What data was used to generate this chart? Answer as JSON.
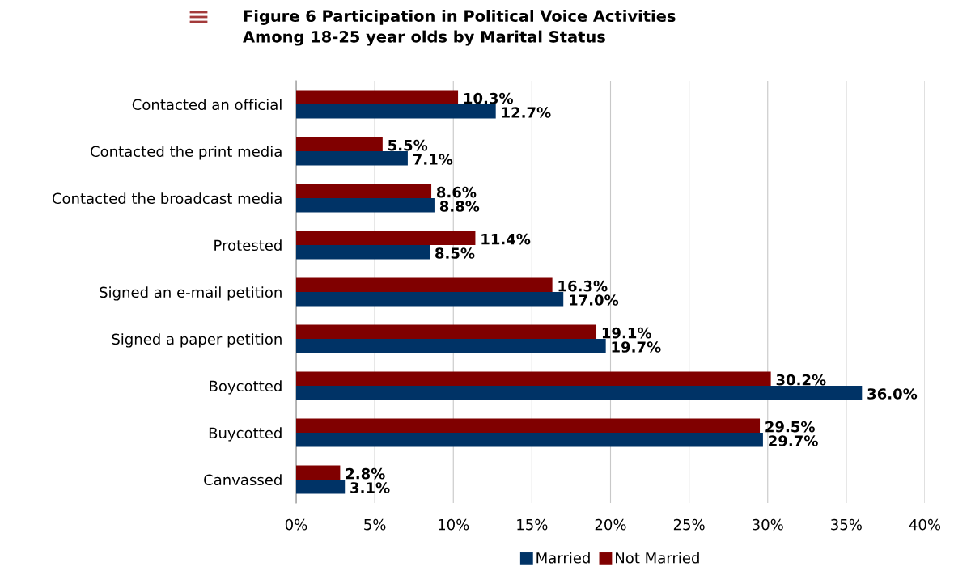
{
  "chart_data": {
    "type": "bar",
    "orientation": "horizontal",
    "title": "Figure 6 Participation in Political Voice Activities\nAmong 18-25 year olds by Marital Status",
    "categories": [
      "Contacted an official",
      "Contacted the print media",
      "Contacted the broadcast media",
      "Protested",
      "Signed an e-mail petition",
      "Signed a paper petition",
      "Boycotted",
      "Buycotted",
      "Canvassed"
    ],
    "series": [
      {
        "name": "Married",
        "color": "#003366",
        "values": [
          12.7,
          7.1,
          8.8,
          8.5,
          17.0,
          19.7,
          36.0,
          29.7,
          3.1
        ],
        "value_labels": [
          "12.7%",
          "7.1%",
          "8.8%",
          "8.5%",
          "17.0%",
          "19.7%",
          "36.0%",
          "29.7%",
          "3.1%"
        ]
      },
      {
        "name": "Not Married",
        "color": "#800000",
        "values": [
          10.3,
          5.5,
          8.6,
          11.4,
          16.3,
          19.1,
          30.2,
          29.5,
          2.8
        ],
        "value_labels": [
          "10.3%",
          "5.5%",
          "8.6%",
          "11.4%",
          "16.3%",
          "19.1%",
          "30.2%",
          "29.5%",
          "2.8%"
        ]
      }
    ],
    "xlim": [
      0,
      40
    ],
    "xticks": [
      {
        "value": 0,
        "label": "0%"
      },
      {
        "value": 5,
        "label": "5%"
      },
      {
        "value": 10,
        "label": "10%"
      },
      {
        "value": 15,
        "label": "15%"
      },
      {
        "value": 20,
        "label": "20%"
      },
      {
        "value": 25,
        "label": "25%"
      },
      {
        "value": 30,
        "label": "30%"
      },
      {
        "value": 35,
        "label": "35%"
      },
      {
        "value": 40,
        "label": "40%"
      }
    ],
    "grid": "x",
    "legend": "bottom"
  }
}
